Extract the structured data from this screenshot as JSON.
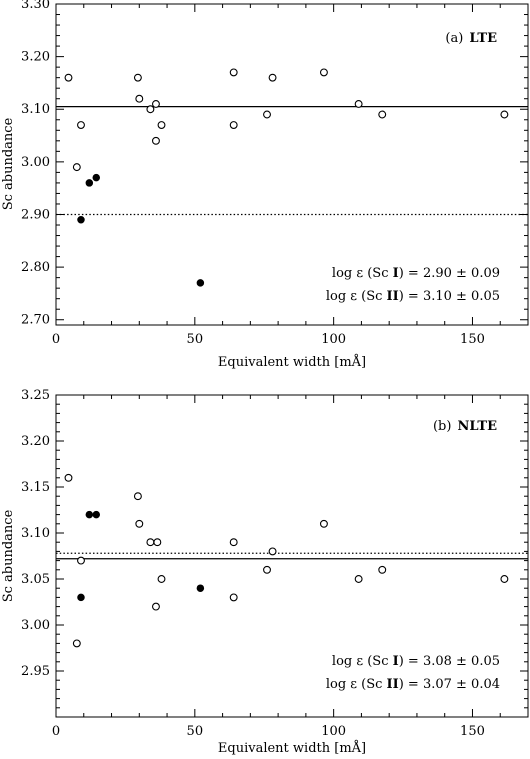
{
  "chart_data": [
    {
      "type": "scatter",
      "panel_label": "(a)",
      "panel_title": "LTE",
      "xlabel": "Equivalent width [mÅ]",
      "ylabel": "Sc abundance",
      "xlim": [
        0,
        170
      ],
      "ylim": [
        2.69,
        3.3
      ],
      "x_ticks": [
        0,
        50,
        100,
        150
      ],
      "x_tick_labels": [
        "0",
        "50",
        "100",
        "150"
      ],
      "y_ticks": [
        2.7,
        2.8,
        2.9,
        3.0,
        3.1,
        3.2,
        3.3
      ],
      "y_tick_labels": [
        "2.70",
        "2.80",
        "2.90",
        "3.00",
        "3.10",
        "3.20",
        "3.30"
      ],
      "grid": false,
      "series": [
        {
          "name": "Sc I",
          "marker": "filled-circle",
          "points": [
            [
              9,
              2.89
            ],
            [
              12,
              2.96
            ],
            [
              14.5,
              2.97
            ],
            [
              52,
              2.77
            ]
          ]
        },
        {
          "name": "Sc II",
          "marker": "open-circle",
          "points": [
            [
              4.5,
              3.16
            ],
            [
              7.5,
              2.99
            ],
            [
              9,
              3.07
            ],
            [
              29.5,
              3.16
            ],
            [
              30,
              3.12
            ],
            [
              34,
              3.1
            ],
            [
              36,
              3.11
            ],
            [
              36,
              3.04
            ],
            [
              38,
              3.07
            ],
            [
              64,
              3.17
            ],
            [
              64,
              3.07
            ],
            [
              76,
              3.09
            ],
            [
              78,
              3.16
            ],
            [
              96.5,
              3.17
            ],
            [
              109,
              3.11
            ],
            [
              117.5,
              3.09
            ],
            [
              161.5,
              3.09
            ]
          ]
        }
      ],
      "lines": [
        {
          "ref": "Sc II mean",
          "style": "solid",
          "y": 3.105
        },
        {
          "ref": "Sc I mean",
          "style": "dotted",
          "y": 2.9
        }
      ],
      "annotations": {
        "prefix": "log ε (Sc ",
        "lines": [
          {
            "ion": "I",
            "value": ") = 2.90 ± 0.09"
          },
          {
            "ion": "II",
            "value": ") = 3.10 ± 0.05"
          }
        ]
      }
    },
    {
      "type": "scatter",
      "panel_label": "(b)",
      "panel_title": "NLTE",
      "xlabel": "Equivalent width [mÅ]",
      "ylabel": "Sc abundance",
      "xlim": [
        0,
        170
      ],
      "ylim": [
        2.9,
        3.25
      ],
      "x_ticks": [
        0,
        50,
        100,
        150
      ],
      "x_tick_labels": [
        "0",
        "50",
        "100",
        "150"
      ],
      "y_ticks": [
        2.95,
        3.0,
        3.05,
        3.1,
        3.15,
        3.2,
        3.25
      ],
      "y_tick_labels": [
        "2.95",
        "3.00",
        "3.05",
        "3.10",
        "3.15",
        "3.20",
        "3.25"
      ],
      "grid": false,
      "series": [
        {
          "name": "Sc I",
          "marker": "filled-circle",
          "points": [
            [
              9,
              3.03
            ],
            [
              12,
              3.12
            ],
            [
              14.5,
              3.12
            ],
            [
              52,
              3.04
            ]
          ]
        },
        {
          "name": "Sc II",
          "marker": "open-circle",
          "points": [
            [
              4.5,
              3.16
            ],
            [
              7.5,
              2.98
            ],
            [
              9,
              3.07
            ],
            [
              29.5,
              3.14
            ],
            [
              30,
              3.11
            ],
            [
              34,
              3.09
            ],
            [
              36.5,
              3.09
            ],
            [
              36,
              3.02
            ],
            [
              38,
              3.05
            ],
            [
              64,
              3.09
            ],
            [
              64,
              3.03
            ],
            [
              76,
              3.06
            ],
            [
              78,
              3.08
            ],
            [
              96.5,
              3.11
            ],
            [
              109,
              3.05
            ],
            [
              117.5,
              3.06
            ],
            [
              161.5,
              3.05
            ]
          ]
        }
      ],
      "lines": [
        {
          "ref": "Sc II mean",
          "style": "solid",
          "y": 3.072
        },
        {
          "ref": "Sc I mean",
          "style": "dotted",
          "y": 3.078
        }
      ],
      "annotations": {
        "prefix": "log ε (Sc ",
        "lines": [
          {
            "ion": "I",
            "value": ") = 3.08 ± 0.05"
          },
          {
            "ion": "II",
            "value": ") = 3.07 ± 0.04"
          }
        ]
      }
    }
  ]
}
